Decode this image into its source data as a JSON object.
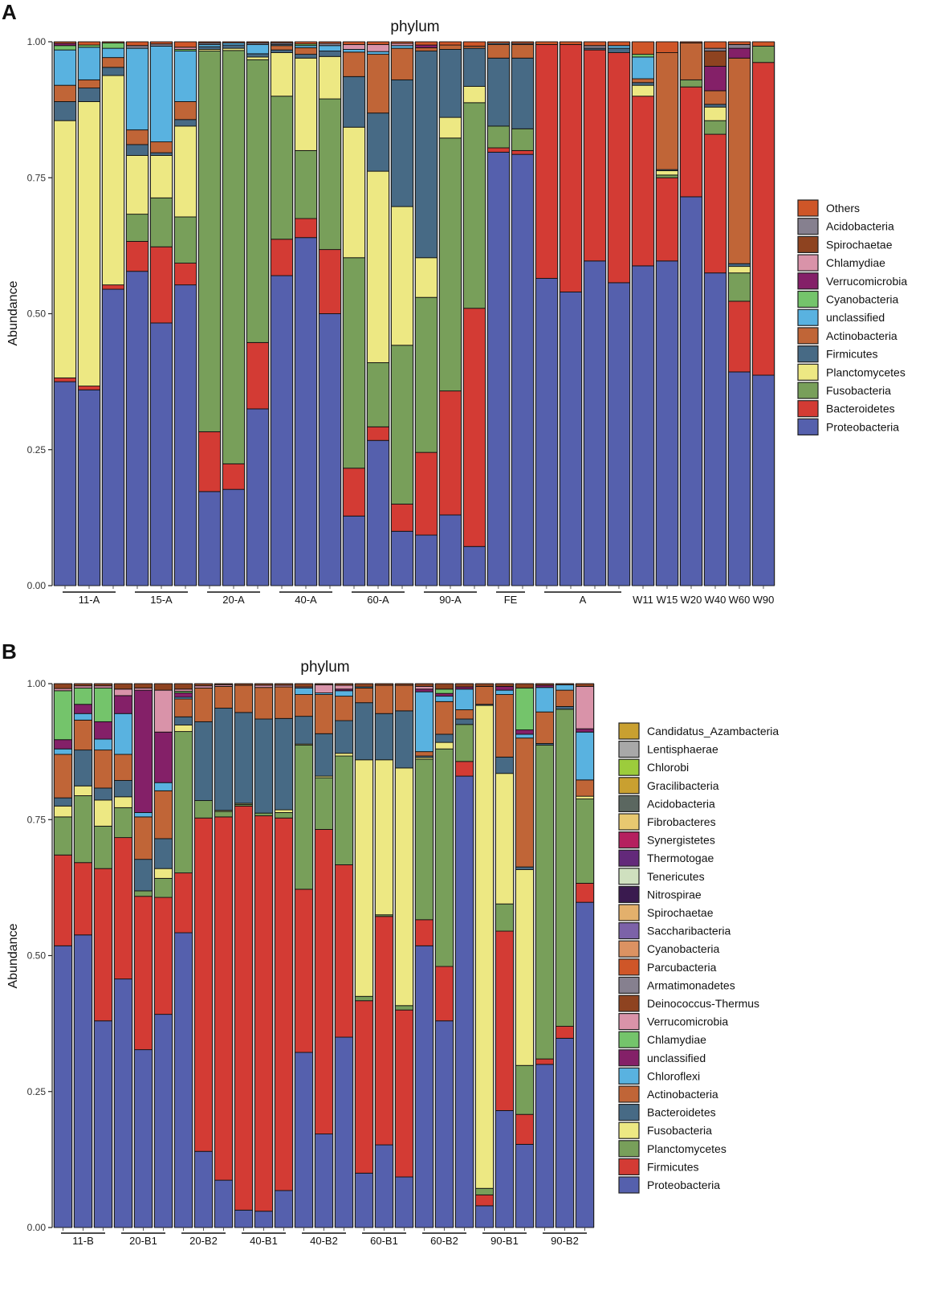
{
  "chart_data": [
    {
      "type": "bar",
      "stacked": true,
      "panel": "A",
      "title": "phylum",
      "xlabel": "",
      "ylabel": "Abundance",
      "ylim": [
        0,
        1
      ],
      "yticks": [
        "0.00",
        "0.25",
        "0.50",
        "0.75",
        "1.00"
      ],
      "groups": [
        {
          "label": "11-A",
          "n": 3
        },
        {
          "label": "15-A",
          "n": 3
        },
        {
          "label": "20-A",
          "n": 3
        },
        {
          "label": "40-A",
          "n": 3
        },
        {
          "label": "60-A",
          "n": 3
        },
        {
          "label": "90-A",
          "n": 3
        },
        {
          "label": "FE",
          "n": 2
        },
        {
          "label": "A",
          "n": 4
        },
        {
          "label": "W11",
          "n": 1
        },
        {
          "label": "W15",
          "n": 1
        },
        {
          "label": "W20",
          "n": 1
        },
        {
          "label": "W40",
          "n": 1
        },
        {
          "label": "W60",
          "n": 1
        },
        {
          "label": "W90",
          "n": 1
        }
      ],
      "series": [
        {
          "name": "Proteobacteria",
          "color": "#5560ad"
        },
        {
          "name": "Bacteroidetes",
          "color": "#d33b34"
        },
        {
          "name": "Fusobacteria",
          "color": "#789f5a"
        },
        {
          "name": "Planctomycetes",
          "color": "#ede883"
        },
        {
          "name": "Firmicutes",
          "color": "#476a85"
        },
        {
          "name": "Actinobacteria",
          "color": "#c06537"
        },
        {
          "name": "unclassified",
          "color": "#59b2e0"
        },
        {
          "name": "Cyanobacteria",
          "color": "#74c46b"
        },
        {
          "name": "Verrucomicrobia",
          "color": "#842068"
        },
        {
          "name": "Chlamydiae",
          "color": "#d993a9"
        },
        {
          "name": "Spirochaetae",
          "color": "#8e4320"
        },
        {
          "name": "Acidobacteria",
          "color": "#86808f"
        },
        {
          "name": "Others",
          "color": "#cf5628"
        }
      ],
      "bars": [
        [
          0.375,
          0.007,
          0,
          0.473,
          0.035,
          0.03,
          0.065,
          0.008,
          0.004,
          0,
          0,
          0,
          0.003
        ],
        [
          0.36,
          0.007,
          0,
          0.523,
          0.025,
          0.015,
          0.06,
          0.004,
          0,
          0,
          0,
          0,
          0.006
        ],
        [
          0.545,
          0.008,
          0,
          0.385,
          0.015,
          0.018,
          0.017,
          0.01,
          0,
          0,
          0,
          0,
          0.002
        ],
        [
          0.578,
          0.055,
          0.05,
          0.108,
          0.02,
          0.027,
          0.15,
          0,
          0,
          0,
          0,
          0.005,
          0.007
        ],
        [
          0.483,
          0.14,
          0.09,
          0.078,
          0.005,
          0.02,
          0.176,
          0,
          0,
          0,
          0,
          0.004,
          0.004
        ],
        [
          0.553,
          0.04,
          0.085,
          0.167,
          0.012,
          0.033,
          0.093,
          0.003,
          0,
          0.004,
          0,
          0,
          0.01
        ],
        [
          0.173,
          0.11,
          0.7,
          0.003,
          0.005,
          0,
          0.004,
          0,
          0,
          0,
          0,
          0.003,
          0.002
        ],
        [
          0.177,
          0.047,
          0.76,
          0.004,
          0.006,
          0,
          0.004,
          0,
          0,
          0,
          0,
          0,
          0.002
        ],
        [
          0.325,
          0.122,
          0.52,
          0.005,
          0.006,
          0,
          0.017,
          0,
          0,
          0,
          0,
          0.003,
          0.002
        ],
        [
          0.57,
          0.067,
          0.263,
          0.08,
          0.005,
          0.008,
          0.002,
          0,
          0,
          0,
          0,
          0.003,
          0.002
        ],
        [
          0.64,
          0.035,
          0.125,
          0.17,
          0.007,
          0.012,
          0.004,
          0.003,
          0,
          0,
          0,
          0,
          0.004
        ],
        [
          0.5,
          0.118,
          0.277,
          0.078,
          0.01,
          0,
          0.01,
          0,
          0,
          0,
          0,
          0.004,
          0.003
        ],
        [
          0.128,
          0.088,
          0.387,
          0.24,
          0.093,
          0.045,
          0.005,
          0,
          0,
          0.009,
          0,
          0,
          0.005
        ],
        [
          0.267,
          0.025,
          0.118,
          0.352,
          0.107,
          0.108,
          0.005,
          0,
          0,
          0.013,
          0,
          0,
          0.005
        ],
        [
          0.1,
          0.05,
          0.292,
          0.255,
          0.233,
          0.058,
          0.005,
          0,
          0,
          0.004,
          0,
          0,
          0.003
        ],
        [
          0.093,
          0.152,
          0.285,
          0.073,
          0.38,
          0.006,
          0,
          0,
          0.005,
          0,
          0,
          0,
          0.006
        ],
        [
          0.13,
          0.228,
          0.465,
          0.038,
          0.125,
          0.008,
          0,
          0,
          0,
          0,
          0,
          0,
          0.006
        ],
        [
          0.072,
          0.438,
          0.378,
          0.03,
          0.07,
          0.004,
          0,
          0,
          0,
          0,
          0,
          0,
          0.008
        ],
        [
          0.797,
          0.008,
          0.04,
          0,
          0.125,
          0.025,
          0.002,
          0,
          0,
          0,
          0,
          0,
          0.003
        ],
        [
          0.793,
          0.007,
          0.04,
          0,
          0.13,
          0.025,
          0,
          0,
          0,
          0,
          0,
          0.002,
          0.003
        ],
        [
          0.565,
          0.43,
          0,
          0,
          0,
          0,
          0,
          0,
          0,
          0,
          0,
          0,
          0.005
        ],
        [
          0.54,
          0.455,
          0,
          0,
          0,
          0,
          0,
          0,
          0,
          0,
          0,
          0,
          0.005
        ],
        [
          0.597,
          0.388,
          0,
          0,
          0.003,
          0,
          0,
          0,
          0,
          0,
          0,
          0.005,
          0.007
        ],
        [
          0.557,
          0.423,
          0,
          0,
          0.008,
          0,
          0.005,
          0,
          0,
          0,
          0,
          0,
          0.007
        ],
        [
          0.588,
          0.312,
          0,
          0.02,
          0.005,
          0.007,
          0.04,
          0.005,
          0,
          0,
          0,
          0,
          0.023
        ],
        [
          0.597,
          0.153,
          0.005,
          0.008,
          0.002,
          0.215,
          0,
          0,
          0,
          0,
          0,
          0,
          0.02
        ],
        [
          0.715,
          0.202,
          0.013,
          0,
          0,
          0.068,
          0,
          0,
          0,
          0,
          0,
          0,
          0.002
        ],
        [
          0.575,
          0.255,
          0.025,
          0.025,
          0.005,
          0.025,
          0,
          0,
          0.045,
          0,
          0.028,
          0.005,
          0.012
        ],
        [
          0.393,
          0.13,
          0.052,
          0.012,
          0.005,
          0.378,
          0,
          0,
          0.018,
          0,
          0,
          0.007,
          0.005
        ],
        [
          0.387,
          0.575,
          0.03,
          0,
          0,
          0,
          0,
          0,
          0,
          0,
          0,
          0,
          0.008
        ]
      ]
    },
    {
      "type": "bar",
      "stacked": true,
      "panel": "B",
      "title": "phylum",
      "xlabel": "",
      "ylabel": "Abundance",
      "ylim": [
        0,
        1
      ],
      "yticks": [
        "0.00",
        "0.25",
        "0.50",
        "0.75",
        "1.00"
      ],
      "groups": [
        {
          "label": "11-B",
          "n": 3
        },
        {
          "label": "20-B1",
          "n": 3
        },
        {
          "label": "20-B2",
          "n": 3
        },
        {
          "label": "40-B1",
          "n": 3
        },
        {
          "label": "40-B2",
          "n": 3
        },
        {
          "label": "60-B1",
          "n": 3
        },
        {
          "label": "60-B2",
          "n": 3
        },
        {
          "label": "90-B1",
          "n": 3
        },
        {
          "label": "90-B2",
          "n": 3
        }
      ],
      "series": [
        {
          "name": "Proteobacteria",
          "color": "#5560ad"
        },
        {
          "name": "Firmicutes",
          "color": "#d33b34"
        },
        {
          "name": "Planctomycetes",
          "color": "#789f5a"
        },
        {
          "name": "Fusobacteria",
          "color": "#ede883"
        },
        {
          "name": "Bacteroidetes",
          "color": "#476a85"
        },
        {
          "name": "Actinobacteria",
          "color": "#c06537"
        },
        {
          "name": "Chloroflexi",
          "color": "#59b2e0"
        },
        {
          "name": "unclassified",
          "color": "#842068"
        },
        {
          "name": "Chlamydiae",
          "color": "#74c46b"
        },
        {
          "name": "Verrucomicrobia",
          "color": "#d993a9"
        },
        {
          "name": "Deinococcus-Thermus",
          "color": "#8e4320"
        },
        {
          "name": "Armatimonadetes",
          "color": "#86808f"
        },
        {
          "name": "Parcubacteria",
          "color": "#cf5628"
        },
        {
          "name": "Cyanobacteria",
          "color": "#dc9262"
        },
        {
          "name": "Saccharibacteria",
          "color": "#7c62a8"
        },
        {
          "name": "Spirochaetae",
          "color": "#e3b06c"
        },
        {
          "name": "Nitrospirae",
          "color": "#3a1a4f"
        },
        {
          "name": "Tenericutes",
          "color": "#cfe0bf"
        },
        {
          "name": "Thermotogae",
          "color": "#63297a"
        },
        {
          "name": "Synergistetes",
          "color": "#b5205f"
        },
        {
          "name": "Fibrobacteres",
          "color": "#e8c870"
        },
        {
          "name": "Acidobacteria",
          "color": "#5b6760"
        },
        {
          "name": "Gracilibacteria",
          "color": "#c9a030"
        },
        {
          "name": "Chlorobi",
          "color": "#9ccc3c"
        },
        {
          "name": "Lentisphaerae",
          "color": "#a8a8a8"
        },
        {
          "name": "Candidatus_Azambacteria",
          "color": "#c9a030"
        }
      ],
      "bars": [
        [
          0.518,
          0.167,
          0.07,
          0.02,
          0.015,
          0.08,
          0.01,
          0.017,
          0.09,
          0.004,
          0.009
        ],
        [
          0.538,
          0.133,
          0.123,
          0.018,
          0.066,
          0.055,
          0.012,
          0.017,
          0.03,
          0.004,
          0.004
        ],
        [
          0.38,
          0.28,
          0.078,
          0.048,
          0.022,
          0.07,
          0.02,
          0.032,
          0.062,
          0.004,
          0.004
        ],
        [
          0.457,
          0.26,
          0.055,
          0.02,
          0.03,
          0.048,
          0.075,
          0.033,
          0,
          0.012,
          0.01
        ],
        [
          0.327,
          0.282,
          0.01,
          0,
          0.058,
          0.078,
          0.008,
          0.225,
          0,
          0.004,
          0.008
        ],
        [
          0.392,
          0.215,
          0.035,
          0.018,
          0.055,
          0.088,
          0.015,
          0.093,
          0,
          0.077,
          0.012
        ],
        [
          0.542,
          0.11,
          0.26,
          0.012,
          0.015,
          0.033,
          0.003,
          0.008,
          0.003,
          0.004,
          0.01
        ],
        [
          0.14,
          0.613,
          0.032,
          0,
          0.145,
          0.062,
          0,
          0,
          0,
          0.004,
          0.004
        ],
        [
          0.087,
          0.668,
          0.01,
          0.002,
          0.188,
          0.04,
          0,
          0,
          0,
          0.003,
          0.002
        ],
        [
          0.032,
          0.743,
          0.003,
          0.002,
          0.167,
          0.05,
          0,
          0,
          0,
          0,
          0.003
        ],
        [
          0.03,
          0.727,
          0.005,
          0,
          0.173,
          0.058,
          0,
          0,
          0,
          0.004,
          0.003
        ],
        [
          0.068,
          0.685,
          0.01,
          0.005,
          0.168,
          0.058,
          0,
          0,
          0,
          0.003,
          0.003
        ],
        [
          0.322,
          0.3,
          0.265,
          0.002,
          0.051,
          0.04,
          0.012,
          0,
          0,
          0.002,
          0.006
        ],
        [
          0.172,
          0.56,
          0.095,
          0.003,
          0.078,
          0.072,
          0.003,
          0,
          0,
          0.015,
          0.002
        ],
        [
          0.35,
          0.317,
          0.2,
          0.005,
          0.06,
          0.045,
          0.01,
          0.003,
          0,
          0.007,
          0.003
        ],
        [
          0.1,
          0.317,
          0.008,
          0.435,
          0.105,
          0.027,
          0.002,
          0,
          0,
          0,
          0.006
        ],
        [
          0.152,
          0.42,
          0.003,
          0.285,
          0.085,
          0.052,
          0,
          0,
          0,
          0,
          0.003
        ],
        [
          0.093,
          0.307,
          0.008,
          0.437,
          0.105,
          0.047,
          0,
          0,
          0,
          0,
          0.003
        ],
        [
          0.518,
          0.048,
          0.295,
          0.003,
          0.003,
          0.008,
          0.11,
          0.005,
          0,
          0.005,
          0.005
        ],
        [
          0.38,
          0.1,
          0.4,
          0.012,
          0.015,
          0.06,
          0.01,
          0.005,
          0.008,
          0,
          0.01
        ],
        [
          0.83,
          0.027,
          0.068,
          0,
          0.01,
          0.017,
          0.038,
          0.004,
          0,
          0,
          0.006
        ],
        [
          0.04,
          0.02,
          0.012,
          0.888,
          0.002,
          0.033,
          0,
          0,
          0,
          0,
          0.005
        ],
        [
          0.215,
          0.33,
          0.05,
          0.24,
          0.03,
          0.115,
          0.008,
          0.007,
          0,
          0,
          0.005
        ],
        [
          0.153,
          0.055,
          0.09,
          0.36,
          0.005,
          0.237,
          0.007,
          0.008,
          0.077,
          0,
          0.008
        ],
        [
          0.3,
          0.01,
          0.577,
          0,
          0.003,
          0.058,
          0.045,
          0.004,
          0,
          0,
          0.003
        ],
        [
          0.348,
          0.022,
          0.583,
          0,
          0.005,
          0.03,
          0.01,
          0,
          0,
          0,
          0.002
        ],
        [
          0.598,
          0.035,
          0.155,
          0.005,
          0,
          0.03,
          0.088,
          0.006,
          0,
          0.078,
          0.005
        ]
      ]
    }
  ]
}
